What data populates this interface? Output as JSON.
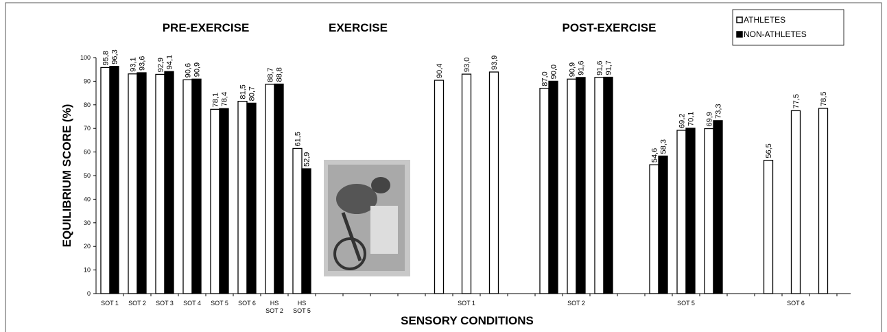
{
  "chart_data": {
    "type": "bar",
    "annotations": [
      "PRE-EXERCISE",
      "EXERCISE",
      "POST-EXERCISE"
    ],
    "x_label": "SENSORY CONDITIONS",
    "y_label": "EQUILIBRIUM SCORE (%)",
    "categories": [
      "SOT 1",
      "SOT 2",
      "SOT 3",
      "SOT 4",
      "SOT 5",
      "SOT 6",
      "HS\nSOT 2",
      "HS\nSOT 5",
      null,
      null,
      null,
      null,
      null,
      "SOT 1",
      null,
      null,
      null,
      "SOT 2",
      null,
      null,
      null,
      "SOT 5",
      null,
      null,
      null,
      "SOT 6",
      null
    ],
    "series": [
      {
        "name": "ATHLETES",
        "color": "#ffffff",
        "values": [
          95.8,
          93.1,
          92.9,
          90.6,
          78.1,
          81.5,
          88.7,
          61.5,
          null,
          null,
          null,
          null,
          90.4,
          93.0,
          93.9,
          null,
          87.0,
          90.9,
          91.6,
          null,
          54.6,
          69.2,
          69.9,
          null,
          56.5,
          77.5,
          78.5
        ],
        "value_labels": [
          "95,8",
          "93,1",
          "92,9",
          "90,6",
          "78,1",
          "81,5",
          "88,7",
          "61,5",
          null,
          null,
          null,
          null,
          "90,4",
          "93,0",
          "93,9",
          null,
          "87,0",
          "90,9",
          "91,6",
          null,
          "54,6",
          "69,2",
          "69,9",
          null,
          "56,5",
          "77,5",
          "78,5"
        ]
      },
      {
        "name": "NON-ATHLETES",
        "color": "#000000",
        "values": [
          96.3,
          93.6,
          94.1,
          90.9,
          78.4,
          80.7,
          88.8,
          52.9,
          null,
          null,
          null,
          null,
          null,
          null,
          null,
          null,
          90.0,
          91.6,
          91.7,
          null,
          58.3,
          70.1,
          73.3,
          null,
          null,
          null,
          null
        ],
        "value_labels": [
          "96,3",
          "93,6",
          "94,1",
          "90,9",
          "78,4",
          "80,7",
          "88,8",
          "52,9",
          null,
          null,
          null,
          null,
          null,
          null,
          null,
          null,
          "90,0",
          "91,6",
          "91,7",
          null,
          "58,3",
          "70,1",
          "73,3",
          null,
          null,
          null,
          null
        ]
      }
    ],
    "ylim": [
      0,
      100
    ],
    "yticks": [
      0,
      10,
      20,
      30,
      40,
      50,
      60,
      70,
      80,
      90,
      100
    ],
    "legend": "top-right"
  }
}
